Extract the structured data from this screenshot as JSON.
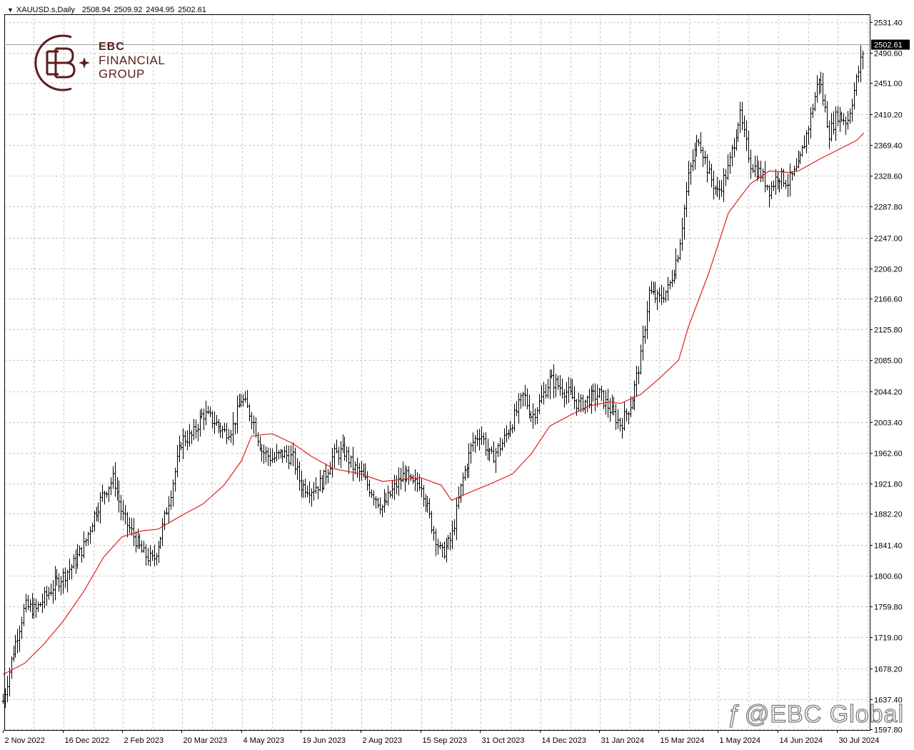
{
  "header": {
    "symbol": "XAUUSD.s,Daily",
    "open": "2508.94",
    "high": "2509.92",
    "low": "2494.95",
    "close": "2502.61"
  },
  "logo": {
    "line1": "EBC",
    "line2": "FINANCIAL",
    "line3": "GROUP"
  },
  "watermark": {
    "text": "@EBC Global"
  },
  "colors": {
    "bars": "#000000",
    "ma": "#e02020",
    "grid": "#c8c8c8",
    "price_tag_bg": "#000000",
    "logo": "#5a1d1c"
  },
  "chart_data": {
    "type": "ohlc",
    "title": "XAUUSD.s,Daily",
    "current_price": 2502.61,
    "ylim": [
      1597.8,
      2531.4
    ],
    "y_ticks": [
      "2531.40",
      "2490.60",
      "2451.00",
      "2410.20",
      "2369.40",
      "2328.60",
      "2287.80",
      "2247.00",
      "2206.20",
      "2166.60",
      "2125.80",
      "2085.00",
      "2044.20",
      "2003.40",
      "1962.60",
      "1921.80",
      "1882.20",
      "1841.40",
      "1800.60",
      "1759.80",
      "1719.00",
      "1678.20",
      "1637.40",
      "1597.80"
    ],
    "x_ticks": [
      "2 Nov 2022",
      "16 Dec 2022",
      "2 Feb 2023",
      "20 Mar 2023",
      "4 May 2023",
      "19 Jun 2023",
      "2 Aug 2023",
      "15 Sep 2023",
      "31 Oct 2023",
      "14 Dec 2023",
      "31 Jan 2024",
      "15 Mar 2024",
      "1 May 2024",
      "14 Jun 2024",
      "30 Jul 2024"
    ],
    "grid": true,
    "series": [
      {
        "kind": "close_path",
        "points": [
          [
            "2 Nov 2022",
            1635
          ],
          [
            "10 Nov 2022",
            1705
          ],
          [
            "18 Nov 2022",
            1760
          ],
          [
            "26 Nov 2022",
            1755
          ],
          [
            "2 Dec 2022",
            1770
          ],
          [
            "10 Dec 2022",
            1790
          ],
          [
            "16 Dec 2022",
            1800
          ],
          [
            "24 Dec 2022",
            1815
          ],
          [
            "2 Jan 2023",
            1840
          ],
          [
            "10 Jan 2023",
            1880
          ],
          [
            "18 Jan 2023",
            1910
          ],
          [
            "26 Jan 2023",
            1930
          ],
          [
            "2 Feb 2023",
            1880
          ],
          [
            "10 Feb 2023",
            1855
          ],
          [
            "18 Feb 2023",
            1830
          ],
          [
            "26 Feb 2023",
            1820
          ],
          [
            "4 Mar 2023",
            1855
          ],
          [
            "12 Mar 2023",
            1915
          ],
          [
            "20 Mar 2023",
            1980
          ],
          [
            "28 Mar 2023",
            1985
          ],
          [
            "5 Apr 2023",
            2015
          ],
          [
            "13 Apr 2023",
            2005
          ],
          [
            "21 Apr 2023",
            1990
          ],
          [
            "27 Apr 2023",
            1995
          ],
          [
            "4 May 2023",
            2035
          ],
          [
            "12 May 2023",
            2010
          ],
          [
            "20 May 2023",
            1965
          ],
          [
            "28 May 2023",
            1955
          ],
          [
            "5 Jun 2023",
            1962
          ],
          [
            "13 Jun 2023",
            1955
          ],
          [
            "19 Jun 2023",
            1920
          ],
          [
            "27 Jun 2023",
            1915
          ],
          [
            "5 Jul 2023",
            1925
          ],
          [
            "13 Jul 2023",
            1960
          ],
          [
            "21 Jul 2023",
            1965
          ],
          [
            "27 Jul 2023",
            1945
          ],
          [
            "2 Aug 2023",
            1935
          ],
          [
            "10 Aug 2023",
            1912
          ],
          [
            "18 Aug 2023",
            1890
          ],
          [
            "26 Aug 2023",
            1915
          ],
          [
            "3 Sep 2023",
            1935
          ],
          [
            "9 Sep 2023",
            1920
          ],
          [
            "15 Sep 2023",
            1925
          ],
          [
            "23 Sep 2023",
            1870
          ],
          [
            "1 Oct 2023",
            1828
          ],
          [
            "9 Oct 2023",
            1850
          ],
          [
            "17 Oct 2023",
            1925
          ],
          [
            "25 Oct 2023",
            1975
          ],
          [
            "31 Oct 2023",
            1990
          ],
          [
            "8 Nov 2023",
            1955
          ],
          [
            "16 Nov 2023",
            1975
          ],
          [
            "24 Nov 2023",
            2005
          ],
          [
            "2 Dec 2023",
            2040
          ],
          [
            "8 Dec 2023",
            2010
          ],
          [
            "14 Dec 2023",
            2030
          ],
          [
            "22 Dec 2023",
            2060
          ],
          [
            "30 Dec 2023",
            2050
          ],
          [
            "7 Jan 2024",
            2040
          ],
          [
            "15 Jan 2024",
            2025
          ],
          [
            "23 Jan 2024",
            2035
          ],
          [
            "31 Jan 2024",
            2040
          ],
          [
            "8 Feb 2024",
            2020
          ],
          [
            "16 Feb 2024",
            2000
          ],
          [
            "24 Feb 2024",
            2030
          ],
          [
            "2 Mar 2024",
            2090
          ],
          [
            "8 Mar 2024",
            2175
          ],
          [
            "15 Mar 2024",
            2165
          ],
          [
            "23 Mar 2024",
            2180
          ],
          [
            "31 Mar 2024",
            2230
          ],
          [
            "8 Apr 2024",
            2330
          ],
          [
            "16 Apr 2024",
            2380
          ],
          [
            "24 Apr 2024",
            2330
          ],
          [
            "1 May 2024",
            2305
          ],
          [
            "9 May 2024",
            2340
          ],
          [
            "17 May 2024",
            2410
          ],
          [
            "25 May 2024",
            2345
          ],
          [
            "2 Jun 2024",
            2330
          ],
          [
            "8 Jun 2024",
            2310
          ],
          [
            "14 Jun 2024",
            2330
          ],
          [
            "22 Jun 2024",
            2320
          ],
          [
            "30 Jun 2024",
            2340
          ],
          [
            "8 Jul 2024",
            2395
          ],
          [
            "16 Jul 2024",
            2460
          ],
          [
            "24 Jul 2024",
            2385
          ],
          [
            "30 Jul 2024",
            2410
          ],
          [
            "7 Aug 2024",
            2400
          ],
          [
            "14 Aug 2024",
            2455
          ],
          [
            "20 Aug 2024",
            2502.61
          ]
        ]
      },
      {
        "kind": "moving_average",
        "points": [
          [
            "2 Nov 2022",
            1670
          ],
          [
            "18 Nov 2022",
            1685
          ],
          [
            "2 Dec 2022",
            1710
          ],
          [
            "16 Dec 2022",
            1740
          ],
          [
            "2 Jan 2023",
            1780
          ],
          [
            "18 Jan 2023",
            1825
          ],
          [
            "2 Feb 2023",
            1852
          ],
          [
            "18 Feb 2023",
            1860
          ],
          [
            "2 Mar 2023",
            1862
          ],
          [
            "20 Mar 2023",
            1880
          ],
          [
            "5 Apr 2023",
            1895
          ],
          [
            "21 Apr 2023",
            1920
          ],
          [
            "4 May 2023",
            1952
          ],
          [
            "12 May 2023",
            1985
          ],
          [
            "28 May 2023",
            1988
          ],
          [
            "13 Jun 2023",
            1975
          ],
          [
            "27 Jun 2023",
            1958
          ],
          [
            "13 Jul 2023",
            1942
          ],
          [
            "2 Aug 2023",
            1935
          ],
          [
            "18 Aug 2023",
            1925
          ],
          [
            "3 Sep 2023",
            1928
          ],
          [
            "15 Sep 2023",
            1930
          ],
          [
            "1 Oct 2023",
            1920
          ],
          [
            "9 Oct 2023",
            1900
          ],
          [
            "25 Oct 2023",
            1912
          ],
          [
            "8 Nov 2023",
            1922
          ],
          [
            "24 Nov 2023",
            1935
          ],
          [
            "8 Dec 2023",
            1962
          ],
          [
            "22 Dec 2023",
            1998
          ],
          [
            "7 Jan 2024",
            2012
          ],
          [
            "23 Jan 2024",
            2025
          ],
          [
            "8 Feb 2024",
            2030
          ],
          [
            "16 Feb 2024",
            2028
          ],
          [
            "2 Mar 2024",
            2040
          ],
          [
            "15 Mar 2024",
            2060
          ],
          [
            "31 Mar 2024",
            2085
          ],
          [
            "8 Apr 2024",
            2130
          ],
          [
            "24 Apr 2024",
            2200
          ],
          [
            "9 May 2024",
            2280
          ],
          [
            "25 May 2024",
            2318
          ],
          [
            "8 Jun 2024",
            2335
          ],
          [
            "22 Jun 2024",
            2333
          ],
          [
            "30 Jun 2024",
            2335
          ],
          [
            "16 Jul 2024",
            2350
          ],
          [
            "30 Jul 2024",
            2362
          ],
          [
            "14 Aug 2024",
            2375
          ],
          [
            "20 Aug 2024",
            2385
          ]
        ]
      }
    ]
  }
}
